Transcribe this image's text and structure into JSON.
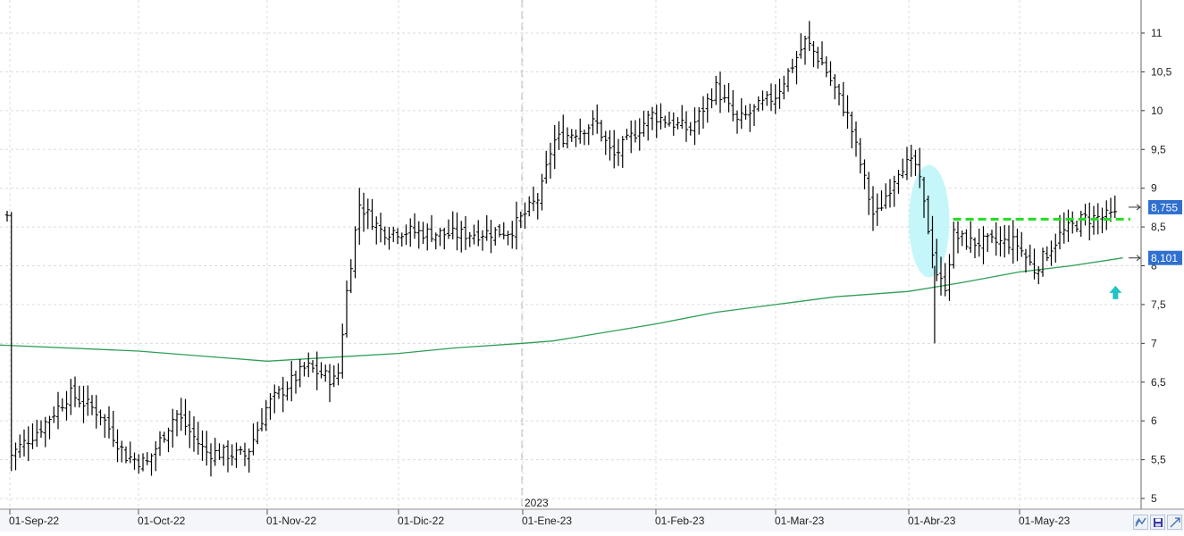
{
  "chart_data": {
    "type": "bar",
    "subtype": "ohlc",
    "x_tick_labels": [
      "01-Sep-22",
      "01-Oct-22",
      "01-Nov-22",
      "01-Dic-22",
      "01-Ene-23",
      "01-Feb-23",
      "01-Mar-23",
      "01-Abr-23",
      "01-May-23"
    ],
    "year_marker": "2023",
    "y_tick_labels": [
      "5",
      "5,5",
      "6",
      "6,5",
      "7",
      "7,5",
      "8",
      "8,5",
      "9",
      "9,5",
      "10",
      "10,5",
      "11"
    ],
    "ylim": [
      4.85,
      11.3
    ],
    "grid": true,
    "price_series": {
      "name": "",
      "color": "#000000",
      "anchors": [
        [
          "01-Sep-22",
          5.55
        ],
        [
          "08-Sep-22",
          5.9
        ],
        [
          "15-Sep-22",
          6.35
        ],
        [
          "22-Sep-22",
          6.1
        ],
        [
          "28-Sep-22",
          5.55
        ],
        [
          "03-Oct-22",
          5.45
        ],
        [
          "10-Oct-22",
          6.1
        ],
        [
          "17-Oct-22",
          5.6
        ],
        [
          "27-Oct-22",
          5.55
        ],
        [
          "01-Nov-22",
          6.2
        ],
        [
          "10-Nov-22",
          6.7
        ],
        [
          "17-Nov-22",
          6.5
        ],
        [
          "19-Nov-22",
          7.6
        ],
        [
          "22-Nov-22",
          8.8
        ],
        [
          "27-Nov-22",
          8.45
        ],
        [
          "01-Dic-22",
          8.45
        ],
        [
          "15-Dic-22",
          8.4
        ],
        [
          "29-Dic-22",
          8.45
        ],
        [
          "05-Ene-23",
          8.9
        ],
        [
          "08-Ene-23",
          9.6
        ],
        [
          "18-Ene-23",
          9.85
        ],
        [
          "22-Ene-23",
          9.4
        ],
        [
          "31-Ene-23",
          9.95
        ],
        [
          "09-Feb-23",
          9.75
        ],
        [
          "15-Feb-23",
          10.3
        ],
        [
          "20-Feb-23",
          9.85
        ],
        [
          "01-Mar-23",
          10.2
        ],
        [
          "08-Mar-23",
          10.9
        ],
        [
          "12-Mar-23",
          10.6
        ],
        [
          "18-Mar-23",
          9.9
        ],
        [
          "24-Mar-23",
          8.6
        ],
        [
          "30-Mar-23",
          9.3
        ],
        [
          "03-Abr-23",
          9.3
        ],
        [
          "09-Abr-23",
          7.8
        ],
        [
          "11-Abr-23",
          7.75
        ],
        [
          "13-Abr-23",
          8.4
        ],
        [
          "17-Abr-23",
          8.3
        ],
        [
          "24-Abr-23",
          8.3
        ],
        [
          "30-Abr-23",
          8.3
        ],
        [
          "05-May-23",
          7.95
        ],
        [
          "12-May-23",
          8.4
        ],
        [
          "18-May-23",
          8.6
        ],
        [
          "28-May-23",
          8.65
        ]
      ]
    },
    "moving_average": {
      "name": "",
      "color": "#2e9e55",
      "anchors": [
        [
          "29-Aug-22",
          6.98
        ],
        [
          "01-Oct-22",
          6.9
        ],
        [
          "01-Nov-22",
          6.77
        ],
        [
          "01-Dic-22",
          6.87
        ],
        [
          "15-Dic-22",
          6.94
        ],
        [
          "01-Ene-23",
          7.0
        ],
        [
          "08-Ene-23",
          7.03
        ],
        [
          "01-Feb-23",
          7.25
        ],
        [
          "15-Feb-23",
          7.4
        ],
        [
          "01-Mar-23",
          7.5
        ],
        [
          "15-Mar-23",
          7.6
        ],
        [
          "01-Abr-23",
          7.67
        ],
        [
          "15-Abr-23",
          7.78
        ],
        [
          "01-May-23",
          7.92
        ],
        [
          "15-May-23",
          8.0
        ],
        [
          "29-May-23",
          8.101
        ]
      ]
    },
    "resistance_line": {
      "value": 8.6,
      "color": "#22dd22",
      "from": "13-Abr-23",
      "to": "31-May-23"
    },
    "price_labels": [
      {
        "value": "8,755",
        "level": 8.755,
        "color": "#2f6fd0"
      },
      {
        "value": "8,101",
        "level": 8.101,
        "color": "#2f6fd0"
      }
    ],
    "annotations": [
      {
        "type": "ellipse",
        "color": "#bff6fa",
        "from": "01-Abr-23",
        "to": "12-Abr-23",
        "y_range": [
          7.85,
          9.3
        ]
      },
      {
        "type": "arrow-up",
        "color": "#22c4c4",
        "date": "27-May-23",
        "level": 7.65
      }
    ]
  },
  "toolbar": {
    "icons": [
      "scale-icon",
      "save-icon",
      "expand-icon"
    ]
  }
}
